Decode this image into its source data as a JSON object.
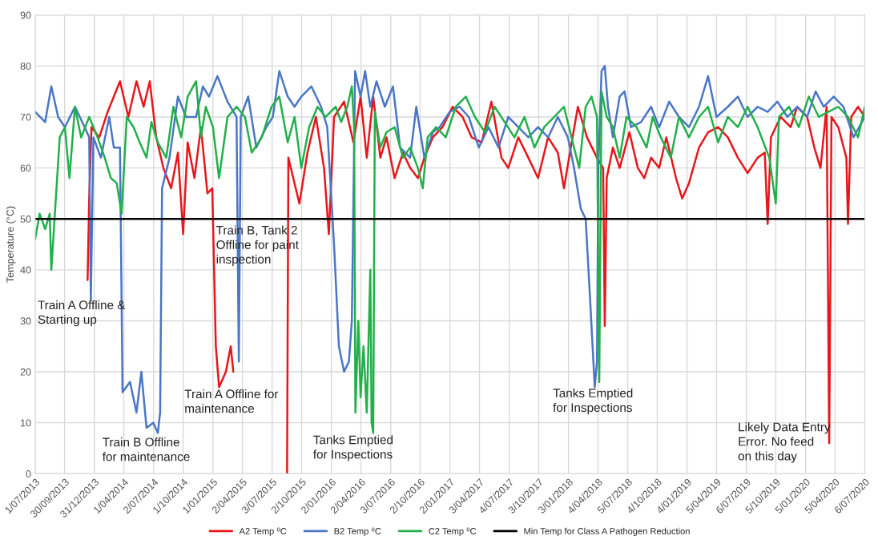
{
  "chart_data": {
    "type": "line",
    "ylabel": "Temperature (°C)",
    "ylim": [
      0,
      90
    ],
    "yticks": [
      0,
      10,
      20,
      30,
      40,
      50,
      60,
      70,
      80,
      90
    ],
    "xlim": [
      "2013-07-01",
      "2020-07-06"
    ],
    "xticks": [
      {
        "value": "2013-07-01",
        "label": "1/07/2013"
      },
      {
        "value": "2013-09-30",
        "label": "30/09/2013"
      },
      {
        "value": "2013-12-31",
        "label": "31/12/2013"
      },
      {
        "value": "2014-04-01",
        "label": "1/04/2014"
      },
      {
        "value": "2014-07-02",
        "label": "2/07/2014"
      },
      {
        "value": "2014-10-01",
        "label": "1/10/2014"
      },
      {
        "value": "2015-01-01",
        "label": "1/01/2015"
      },
      {
        "value": "2015-04-02",
        "label": "2/04/2015"
      },
      {
        "value": "2015-07-03",
        "label": "3/07/2015"
      },
      {
        "value": "2015-10-02",
        "label": "2/10/2015"
      },
      {
        "value": "2016-01-02",
        "label": "2/01/2016"
      },
      {
        "value": "2016-04-02",
        "label": "2/04/2016"
      },
      {
        "value": "2016-07-03",
        "label": "3/07/2016"
      },
      {
        "value": "2016-10-02",
        "label": "2/10/2016"
      },
      {
        "value": "2017-01-02",
        "label": "2/01/2017"
      },
      {
        "value": "2017-04-03",
        "label": "3/04/2017"
      },
      {
        "value": "2017-07-04",
        "label": "4/07/2017"
      },
      {
        "value": "2017-10-03",
        "label": "3/10/2017"
      },
      {
        "value": "2018-01-03",
        "label": "3/01/2018"
      },
      {
        "value": "2018-04-04",
        "label": "4/04/2018"
      },
      {
        "value": "2018-07-05",
        "label": "5/07/2018"
      },
      {
        "value": "2018-10-04",
        "label": "4/10/2018"
      },
      {
        "value": "2019-01-04",
        "label": "4/01/2019"
      },
      {
        "value": "2019-04-05",
        "label": "5/04/2019"
      },
      {
        "value": "2019-07-06",
        "label": "6/07/2019"
      },
      {
        "value": "2019-10-05",
        "label": "5/10/2019"
      },
      {
        "value": "2020-01-05",
        "label": "5/01/2020"
      },
      {
        "value": "2020-04-05",
        "label": "5/04/2020"
      },
      {
        "value": "2020-07-06",
        "label": "6/07/2020"
      }
    ],
    "grid": true,
    "legend": "bottom",
    "marker": "none",
    "line_style": "solid",
    "series": [
      {
        "name": "A2 Temp ⁰C",
        "color": "#e8161b",
        "x": [
          "2013-12-10",
          "2013-12-15",
          "2013-12-22",
          "2014-01-15",
          "2014-02-10",
          "2014-03-01",
          "2014-03-20",
          "2014-04-15",
          "2014-05-10",
          "2014-06-01",
          "2014-06-20",
          "2014-07-10",
          "2014-08-01",
          "2014-08-25",
          "2014-09-15",
          "2014-10-01",
          "2014-10-15",
          "2014-11-05",
          "2014-11-25",
          "2014-12-15",
          "2014-12-30",
          "2015-01-10",
          "2015-01-20",
          "2015-02-10",
          "2015-02-25",
          "2015-03-05",
          "2015-05-15",
          "2015-08-18",
          "2015-08-22",
          "2015-09-10",
          "2015-09-25",
          "2015-10-20",
          "2015-11-15",
          "2015-12-10",
          "2015-12-25",
          "2016-01-10",
          "2016-02-10",
          "2016-03-10",
          "2016-04-01",
          "2016-04-20",
          "2016-05-10",
          "2016-06-01",
          "2016-06-20",
          "2016-07-15",
          "2016-08-10",
          "2016-09-01",
          "2016-09-25",
          "2016-10-15",
          "2016-11-10",
          "2016-12-10",
          "2017-01-10",
          "2017-02-10",
          "2017-03-10",
          "2017-04-10",
          "2017-05-10",
          "2017-06-10",
          "2017-07-01",
          "2017-08-01",
          "2017-09-01",
          "2017-10-01",
          "2017-11-01",
          "2017-12-01",
          "2017-12-20",
          "2018-01-10",
          "2018-02-01",
          "2018-03-01",
          "2018-04-01",
          "2018-04-20",
          "2018-04-25",
          "2018-05-01",
          "2018-05-20",
          "2018-06-10",
          "2018-07-10",
          "2018-08-05",
          "2018-08-25",
          "2018-09-15",
          "2018-10-10",
          "2018-11-01",
          "2018-12-01",
          "2018-12-20",
          "2019-01-10",
          "2019-02-10",
          "2019-03-10",
          "2019-04-10",
          "2019-05-10",
          "2019-06-10",
          "2019-07-10",
          "2019-08-10",
          "2019-09-01",
          "2019-09-10",
          "2019-09-20",
          "2019-10-20",
          "2019-11-20",
          "2019-12-10",
          "2020-01-10",
          "2020-02-01",
          "2020-02-20",
          "2020-03-10",
          "2020-03-18",
          "2020-03-25",
          "2020-04-15",
          "2020-05-10",
          "2020-05-15",
          "2020-05-25",
          "2020-06-15",
          "2020-07-06"
        ],
        "values": [
          38,
          54,
          68,
          66,
          71,
          74,
          77,
          70,
          77,
          72,
          77,
          66,
          60,
          56,
          63,
          47,
          65,
          58,
          68,
          55,
          56,
          25,
          17,
          20,
          25,
          20,
          null,
          0,
          62,
          57,
          53,
          63,
          70,
          60,
          47,
          70,
          73,
          65,
          74,
          62,
          74,
          62,
          66,
          58,
          63,
          60,
          58,
          62,
          66,
          68,
          72,
          70,
          66,
          65,
          73,
          62,
          60,
          66,
          62,
          58,
          66,
          63,
          56,
          64,
          72,
          66,
          62,
          60,
          29,
          58,
          64,
          60,
          67,
          60,
          58,
          62,
          60,
          66,
          58,
          54,
          57,
          64,
          67,
          68,
          66,
          62,
          59,
          62,
          63,
          49,
          66,
          70,
          68,
          72,
          70,
          64,
          60,
          72,
          6,
          70,
          68,
          62,
          49,
          70,
          72,
          70
        ]
      },
      {
        "name": "B2 Temp ⁰C",
        "color": "#4a76c6",
        "x": [
          "2013-07-01",
          "2013-08-01",
          "2013-08-20",
          "2013-09-10",
          "2013-10-01",
          "2013-11-01",
          "2013-12-01",
          "2013-12-15",
          "2013-12-20",
          "2013-12-28",
          "2014-01-20",
          "2014-02-15",
          "2014-03-01",
          "2014-03-20",
          "2014-03-28",
          "2014-04-20",
          "2014-05-10",
          "2014-05-25",
          "2014-06-10",
          "2014-07-01",
          "2014-07-15",
          "2014-07-22",
          "2014-07-28",
          "2014-08-20",
          "2014-09-15",
          "2014-10-10",
          "2014-11-10",
          "2014-12-01",
          "2014-12-20",
          "2015-01-15",
          "2015-02-15",
          "2015-03-15",
          "2015-03-22",
          "2015-03-28",
          "2015-04-20",
          "2015-05-15",
          "2015-06-15",
          "2015-07-05",
          "2015-07-25",
          "2015-08-20",
          "2015-09-10",
          "2015-10-01",
          "2015-11-01",
          "2015-12-01",
          "2015-12-20",
          "2016-01-10",
          "2016-01-25",
          "2016-02-10",
          "2016-02-25",
          "2016-03-05",
          "2016-03-15",
          "2016-04-01",
          "2016-04-15",
          "2016-05-01",
          "2016-05-20",
          "2016-06-15",
          "2016-07-10",
          "2016-08-01",
          "2016-09-01",
          "2016-09-20",
          "2016-10-15",
          "2016-11-10",
          "2016-12-01",
          "2017-01-01",
          "2017-02-01",
          "2017-03-01",
          "2017-04-01",
          "2017-05-01",
          "2017-06-01",
          "2017-07-01",
          "2017-08-01",
          "2017-09-01",
          "2017-10-01",
          "2017-11-01",
          "2017-12-01",
          "2018-01-01",
          "2018-01-20",
          "2018-02-10",
          "2018-02-25",
          "2018-03-10",
          "2018-03-25",
          "2018-04-01",
          "2018-04-05",
          "2018-04-15",
          "2018-04-25",
          "2018-05-05",
          "2018-05-20",
          "2018-06-10",
          "2018-06-25",
          "2018-07-15",
          "2018-08-15",
          "2018-09-15",
          "2018-10-10",
          "2018-11-10",
          "2018-12-10",
          "2019-01-10",
          "2019-02-10",
          "2019-03-10",
          "2019-04-05",
          "2019-05-10",
          "2019-06-10",
          "2019-07-10",
          "2019-08-10",
          "2019-09-10",
          "2019-10-10",
          "2019-11-10",
          "2019-12-10",
          "2020-01-10",
          "2020-02-05",
          "2020-03-01",
          "2020-04-01",
          "2020-05-01",
          "2020-06-01",
          "2020-07-06"
        ],
        "values": [
          71,
          69,
          76,
          70,
          68,
          72,
          68,
          66,
          34,
          66,
          62,
          70,
          64,
          64,
          16,
          18,
          12,
          20,
          9,
          10,
          8,
          12,
          56,
          62,
          74,
          70,
          70,
          76,
          74,
          78,
          73,
          70,
          22,
          70,
          74,
          64,
          68,
          70,
          79,
          74,
          72,
          74,
          76,
          72,
          68,
          45,
          25,
          20,
          22,
          30,
          79,
          74,
          79,
          72,
          77,
          72,
          76,
          64,
          62,
          72,
          62,
          67,
          68,
          71,
          72,
          70,
          64,
          68,
          64,
          70,
          68,
          66,
          68,
          66,
          70,
          66,
          60,
          52,
          50,
          35,
          17,
          22,
          60,
          79,
          80,
          72,
          66,
          74,
          75,
          68,
          69,
          72,
          68,
          73,
          70,
          68,
          72,
          78,
          70,
          72,
          74,
          70,
          72,
          71,
          73,
          70,
          72,
          70,
          75,
          72,
          74,
          72,
          66,
          70
        ]
      },
      {
        "name": "C2 Temp ⁰C",
        "color": "#22b04a",
        "x": [
          "2013-07-01",
          "2013-07-15",
          "2013-08-01",
          "2013-08-15",
          "2013-08-20",
          "2013-09-01",
          "2013-09-15",
          "2013-10-01",
          "2013-10-15",
          "2013-11-01",
          "2013-11-20",
          "2013-12-15",
          "2014-01-10",
          "2014-02-01",
          "2014-02-20",
          "2014-03-10",
          "2014-03-25",
          "2014-04-10",
          "2014-05-01",
          "2014-05-20",
          "2014-06-10",
          "2014-06-25",
          "2014-07-15",
          "2014-08-10",
          "2014-09-01",
          "2014-09-25",
          "2014-10-15",
          "2014-11-10",
          "2014-11-25",
          "2014-12-10",
          "2015-01-01",
          "2015-01-20",
          "2015-02-15",
          "2015-03-15",
          "2015-04-10",
          "2015-05-01",
          "2015-06-01",
          "2015-07-01",
          "2015-07-25",
          "2015-08-20",
          "2015-09-10",
          "2015-10-01",
          "2015-10-25",
          "2015-11-20",
          "2015-12-15",
          "2016-01-15",
          "2016-02-01",
          "2016-02-20",
          "2016-03-05",
          "2016-03-12",
          "2016-03-16",
          "2016-03-25",
          "2016-04-01",
          "2016-04-10",
          "2016-04-20",
          "2016-05-01",
          "2016-05-05",
          "2016-05-10",
          "2016-05-15",
          "2016-06-01",
          "2016-06-20",
          "2016-07-15",
          "2016-08-10",
          "2016-09-01",
          "2016-09-25",
          "2016-10-10",
          "2016-10-25",
          "2016-11-20",
          "2016-12-20",
          "2017-01-20",
          "2017-02-20",
          "2017-03-20",
          "2017-04-20",
          "2017-05-20",
          "2017-06-20",
          "2017-07-20",
          "2017-08-20",
          "2017-09-20",
          "2017-10-20",
          "2017-11-20",
          "2017-12-20",
          "2018-01-20",
          "2018-02-05",
          "2018-02-25",
          "2018-03-15",
          "2018-04-01",
          "2018-04-08",
          "2018-04-15",
          "2018-05-01",
          "2018-05-20",
          "2018-06-10",
          "2018-07-01",
          "2018-08-01",
          "2018-09-01",
          "2018-09-20",
          "2018-10-15",
          "2018-11-15",
          "2018-12-10",
          "2019-01-10",
          "2019-02-10",
          "2019-03-10",
          "2019-04-10",
          "2019-05-10",
          "2019-06-10",
          "2019-07-10",
          "2019-08-10",
          "2019-09-15",
          "2019-10-05",
          "2019-10-15",
          "2019-11-15",
          "2019-12-15",
          "2020-01-15",
          "2020-02-15",
          "2020-03-15",
          "2020-04-15",
          "2020-05-15",
          "2020-06-15",
          "2020-07-06"
        ],
        "values": [
          46,
          51,
          48,
          51,
          40,
          52,
          66,
          68,
          58,
          72,
          66,
          70,
          66,
          62,
          58,
          57,
          51,
          70,
          68,
          65,
          62,
          69,
          65,
          62,
          72,
          66,
          74,
          77,
          66,
          72,
          68,
          58,
          70,
          72,
          70,
          63,
          66,
          72,
          74,
          65,
          70,
          60,
          68,
          72,
          70,
          72,
          69,
          72,
          76,
          68,
          12,
          30,
          15,
          25,
          12,
          40,
          10,
          8,
          71,
          64,
          67,
          68,
          62,
          64,
          60,
          56,
          66,
          68,
          66,
          72,
          74,
          70,
          67,
          72,
          69,
          66,
          70,
          64,
          68,
          70,
          72,
          64,
          60,
          72,
          74,
          70,
          18,
          75,
          70,
          68,
          62,
          70,
          68,
          64,
          70,
          66,
          62,
          70,
          66,
          70,
          72,
          65,
          70,
          68,
          72,
          68,
          62,
          53,
          70,
          72,
          68,
          74,
          70,
          71,
          72,
          70,
          66,
          72
        ]
      }
    ],
    "ref_lines": [
      {
        "axis": "y",
        "value": 50,
        "label": "Min Temp for Class A Pathogen Reduction",
        "color": "#000000"
      }
    ],
    "annotations": [
      "Train A Offline &\nStarting up",
      "Train B Offline\nfor maintenance",
      "Train A Offline for\nmaintenance",
      "Train B, Tank 2\nOffline for paint\ninspection",
      "Tanks Emptied\nfor Inspections",
      "Tanks Emptied\nfor Inspections",
      "Likely Data Entry\nError. No feed\non this day"
    ]
  }
}
